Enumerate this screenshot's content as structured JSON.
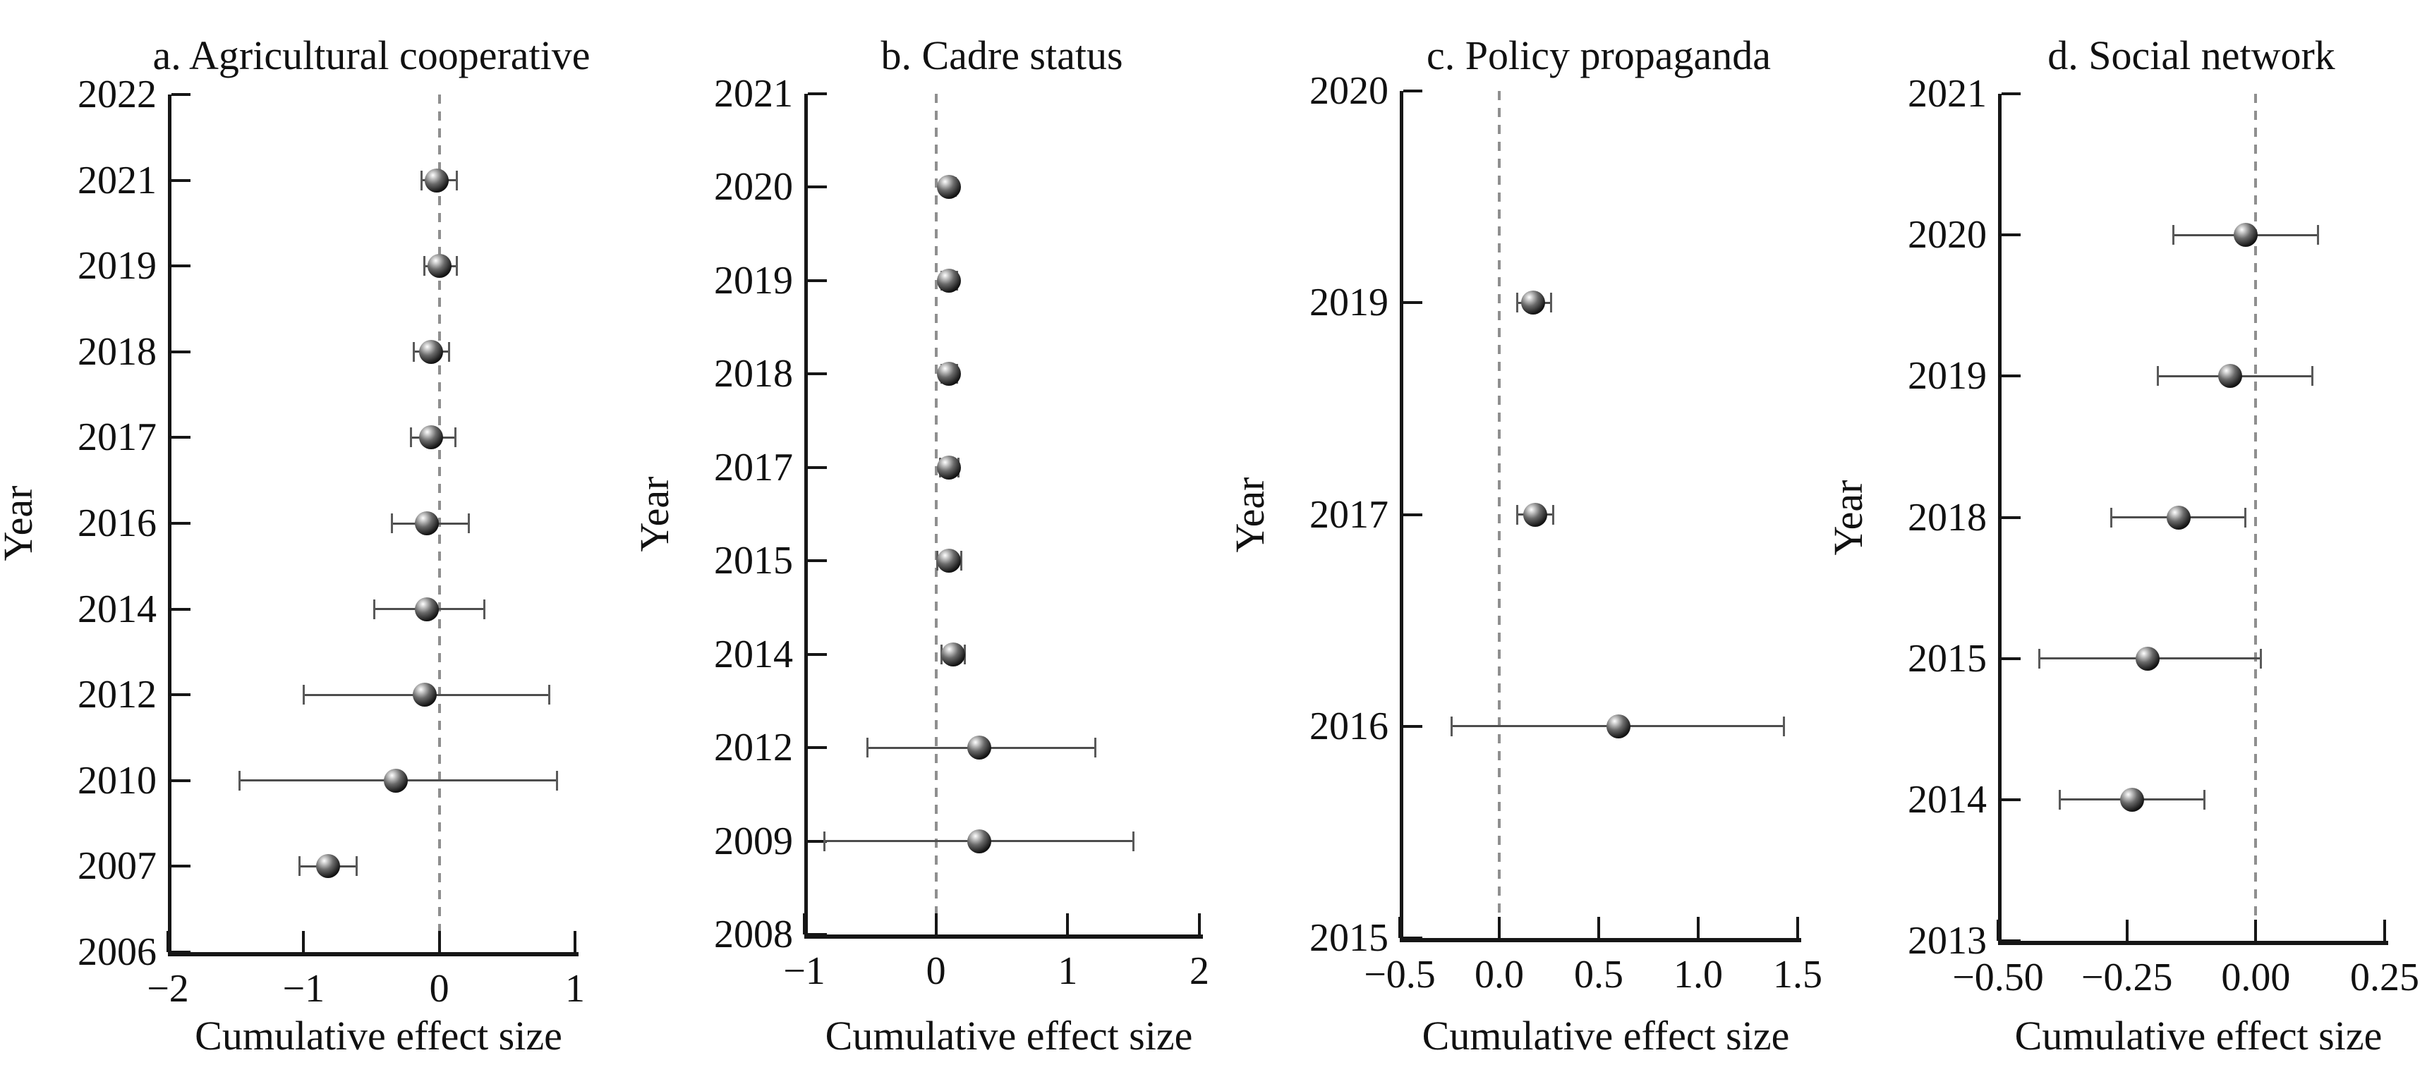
{
  "figure": {
    "xlabel": "Cumulative effect size",
    "ylabel": "Year"
  },
  "chart_data": [
    {
      "type": "scatter",
      "panel": "a",
      "title": "a. Agricultural cooperative",
      "xlabel": "Cumulative effect size",
      "ylabel": "Year",
      "xlim": [
        -2,
        1
      ],
      "x_ticks": [
        {
          "label": "−2",
          "value": -2
        },
        {
          "label": "−1",
          "value": -1
        },
        {
          "label": "0",
          "value": 0
        },
        {
          "label": "1",
          "value": 1
        }
      ],
      "y_categories": [
        "2022",
        "2021",
        "2019",
        "2018",
        "2017",
        "2016",
        "2014",
        "2012",
        "2010",
        "2007",
        "2006"
      ],
      "zero_line_x": 0,
      "points": [
        {
          "year": "2021",
          "value": -0.02,
          "ci_low": -0.13,
          "ci_high": 0.13
        },
        {
          "year": "2019",
          "value": 0.0,
          "ci_low": -0.11,
          "ci_high": 0.13
        },
        {
          "year": "2018",
          "value": -0.06,
          "ci_low": -0.19,
          "ci_high": 0.07
        },
        {
          "year": "2017",
          "value": -0.06,
          "ci_low": -0.21,
          "ci_high": 0.12
        },
        {
          "year": "2016",
          "value": -0.09,
          "ci_low": -0.35,
          "ci_high": 0.22
        },
        {
          "year": "2014",
          "value": -0.09,
          "ci_low": -0.48,
          "ci_high": 0.33
        },
        {
          "year": "2012",
          "value": -0.11,
          "ci_low": -1.0,
          "ci_high": 0.81
        },
        {
          "year": "2010",
          "value": -0.32,
          "ci_low": -1.47,
          "ci_high": 0.87
        },
        {
          "year": "2007",
          "value": -0.82,
          "ci_low": -1.03,
          "ci_high": -0.61
        }
      ]
    },
    {
      "type": "scatter",
      "panel": "b",
      "title": "b. Cadre status",
      "xlabel": "Cumulative effect size",
      "ylabel": "Year",
      "xlim": [
        -1,
        2
      ],
      "x_ticks": [
        {
          "label": "−1",
          "value": -1
        },
        {
          "label": "0",
          "value": 0
        },
        {
          "label": "1",
          "value": 1
        },
        {
          "label": "2",
          "value": 2
        }
      ],
      "y_categories": [
        "2021",
        "2020",
        "2019",
        "2018",
        "2017",
        "2015",
        "2014",
        "2012",
        "2009",
        "2008"
      ],
      "zero_line_x": 0,
      "points": [
        {
          "year": "2020",
          "value": 0.1,
          "ci_low": 0.05,
          "ci_high": 0.15
        },
        {
          "year": "2019",
          "value": 0.1,
          "ci_low": 0.04,
          "ci_high": 0.16
        },
        {
          "year": "2018",
          "value": 0.1,
          "ci_low": 0.04,
          "ci_high": 0.16
        },
        {
          "year": "2017",
          "value": 0.1,
          "ci_low": 0.03,
          "ci_high": 0.17
        },
        {
          "year": "2015",
          "value": 0.1,
          "ci_low": 0.01,
          "ci_high": 0.19
        },
        {
          "year": "2014",
          "value": 0.13,
          "ci_low": 0.04,
          "ci_high": 0.22
        },
        {
          "year": "2012",
          "value": 0.33,
          "ci_low": -0.52,
          "ci_high": 1.21
        },
        {
          "year": "2009",
          "value": 0.33,
          "ci_low": -0.85,
          "ci_high": 1.5
        }
      ]
    },
    {
      "type": "scatter",
      "panel": "c",
      "title": "c. Policy propaganda",
      "xlabel": "Cumulative effect size",
      "ylabel": "Year",
      "xlim": [
        -0.5,
        1.5
      ],
      "x_ticks": [
        {
          "label": "−0.5",
          "value": -0.5
        },
        {
          "label": "0.0",
          "value": 0.0
        },
        {
          "label": "0.5",
          "value": 0.5
        },
        {
          "label": "1.0",
          "value": 1.0
        },
        {
          "label": "1.5",
          "value": 1.5
        }
      ],
      "y_categories": [
        "2020",
        "2019",
        "2017",
        "2016",
        "2015"
      ],
      "zero_line_x": 0,
      "points": [
        {
          "year": "2019",
          "value": 0.17,
          "ci_low": 0.09,
          "ci_high": 0.26
        },
        {
          "year": "2017",
          "value": 0.18,
          "ci_low": 0.09,
          "ci_high": 0.27
        },
        {
          "year": "2016",
          "value": 0.6,
          "ci_low": -0.24,
          "ci_high": 1.43
        }
      ]
    },
    {
      "type": "scatter",
      "panel": "d",
      "title": "d. Social network",
      "xlabel": "Cumulative effect size",
      "ylabel": "Year",
      "xlim": [
        -0.5,
        0.25
      ],
      "x_ticks": [
        {
          "label": "−0.50",
          "value": -0.5
        },
        {
          "label": "−0.25",
          "value": -0.25
        },
        {
          "label": "0.00",
          "value": 0.0
        },
        {
          "label": "0.25",
          "value": 0.25
        }
      ],
      "y_categories": [
        "2021",
        "2020",
        "2019",
        "2018",
        "2015",
        "2014",
        "2013"
      ],
      "zero_line_x": 0,
      "points": [
        {
          "year": "2020",
          "value": -0.02,
          "ci_low": -0.16,
          "ci_high": 0.12
        },
        {
          "year": "2019",
          "value": -0.05,
          "ci_low": -0.19,
          "ci_high": 0.11
        },
        {
          "year": "2018",
          "value": -0.15,
          "ci_low": -0.28,
          "ci_high": -0.02
        },
        {
          "year": "2015",
          "value": -0.21,
          "ci_low": -0.42,
          "ci_high": 0.01
        },
        {
          "year": "2014",
          "value": -0.24,
          "ci_low": -0.38,
          "ci_high": -0.1
        }
      ]
    }
  ]
}
